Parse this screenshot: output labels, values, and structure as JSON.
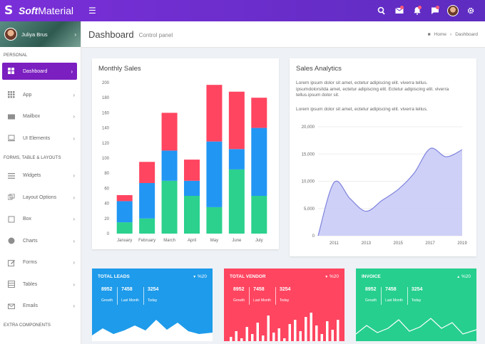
{
  "brand": {
    "bold": "Soft",
    "rest": "Material"
  },
  "user": {
    "name": "Juliya Brus"
  },
  "sidebar": {
    "sections": [
      "PERSONAL",
      "FORMS, TABLE & LAYOUTS",
      "EXTRA COMPONENTS"
    ],
    "items": [
      {
        "label": "Dashboard",
        "icon": "dashboard-icon"
      },
      {
        "label": "App",
        "icon": "grid-icon"
      },
      {
        "label": "Mailbox",
        "icon": "mail-icon"
      },
      {
        "label": "UI Elements",
        "icon": "laptop-icon"
      },
      {
        "label": "Widgets",
        "icon": "list-icon"
      },
      {
        "label": "Layout Options",
        "icon": "layers-icon"
      },
      {
        "label": "Box",
        "icon": "box-icon"
      },
      {
        "label": "Charts",
        "icon": "pie-chart-icon"
      },
      {
        "label": "Forms",
        "icon": "edit-icon"
      },
      {
        "label": "Tables",
        "icon": "table-icon"
      },
      {
        "label": "Emails",
        "icon": "envelope-icon"
      }
    ]
  },
  "header": {
    "title": "Dashboard",
    "subtitle": "Control panel",
    "crumb_home": "Home",
    "crumb_current": "Dashboard"
  },
  "monthly": {
    "title": "Monthly Sales"
  },
  "analytics": {
    "title": "Sales Analytics",
    "p1": "Lorem ipsum dolor sit amet, ectetur adipiscing elit. viverra tellus. ipsumdolorsitda amet, ectetur adipiscing elit. Ectetur adipiscing elit. viverra tellus.ipsum dolor sit.",
    "p2": "Lorem ipsum dolor sit amet, ectetur adipiscing elit. viverra tellus."
  },
  "stats": [
    {
      "title": "TOTAL LEADS",
      "pct": "%20",
      "dir": "down",
      "color": "#1e9bea",
      "n1": "8952",
      "l1": "Growth",
      "n2": "7458",
      "l2": "Last Month",
      "n3": "3254",
      "l3": "Today"
    },
    {
      "title": "TOTAL VENDOR",
      "pct": "%20",
      "dir": "down",
      "color": "#ff4560",
      "n1": "8952",
      "l1": "Growth",
      "n2": "7458",
      "l2": "Last Month",
      "n3": "3254",
      "l3": "Today"
    },
    {
      "title": "INVOICE",
      "pct": "%20",
      "dir": "up",
      "color": "#26cf8e",
      "n1": "8952",
      "l1": "Growth",
      "n2": "7458",
      "l2": "Last Month",
      "n3": "3254",
      "l3": "Today"
    }
  ],
  "colors": {
    "green": "#2bd18d",
    "blue": "#2196f3",
    "red": "#ff4560",
    "area": "#c5c8f6",
    "line": "#7f83dd"
  },
  "chart_data": [
    {
      "type": "bar",
      "stacked": true,
      "categories": [
        "January",
        "February",
        "March",
        "April",
        "May",
        "June",
        "July"
      ],
      "ylim": [
        0,
        200
      ],
      "yticks": [
        0,
        20,
        40,
        60,
        80,
        100,
        120,
        140,
        160,
        180,
        200
      ],
      "series": [
        {
          "values": [
            15,
            20,
            70,
            50,
            35,
            85,
            50
          ]
        },
        {
          "values": [
            28,
            47,
            40,
            20,
            87,
            27,
            90
          ]
        },
        {
          "values": [
            8,
            28,
            50,
            28,
            75,
            76,
            40
          ]
        }
      ]
    },
    {
      "type": "area",
      "x": [
        2010,
        2011,
        2012,
        2013,
        2014,
        2015,
        2016,
        2017,
        2018,
        2019
      ],
      "xticks": [
        2011,
        2013,
        2015,
        2017,
        2019
      ],
      "y": [
        0,
        9800,
        6800,
        4500,
        6500,
        8500,
        11500,
        16000,
        14500,
        15800
      ],
      "ylim": [
        0,
        20000
      ],
      "yticks": [
        0,
        5000,
        10000,
        15000,
        20000
      ],
      "yticklabels": [
        "0",
        "5,000",
        "10,000",
        "15,000",
        "20,000"
      ]
    }
  ]
}
